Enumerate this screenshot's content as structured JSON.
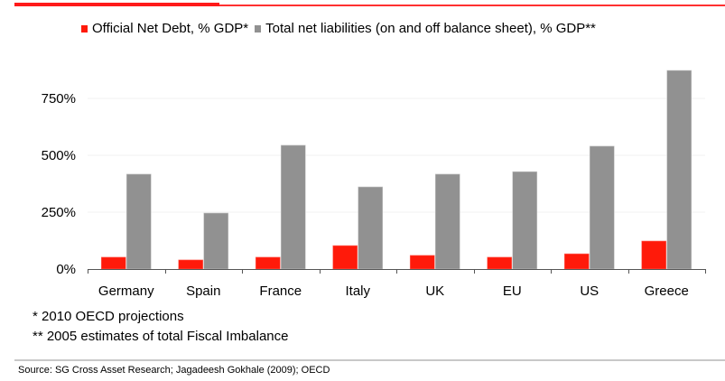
{
  "chart_data": {
    "type": "bar",
    "title": "",
    "xlabel": "",
    "ylabel": "",
    "categories": [
      "Germany",
      "Spain",
      "France",
      "Italy",
      "UK",
      "EU",
      "US",
      "Greece"
    ],
    "series": [
      {
        "name": "Official Net Debt, % GDP*",
        "color": "#ff1a0a",
        "values": [
          52,
          40,
          52,
          103,
          60,
          52,
          67,
          123
        ]
      },
      {
        "name": "Total net liabilities (on and off balance sheet), % GDP**",
        "color": "#919191",
        "values": [
          417,
          246,
          544,
          361,
          417,
          428,
          540,
          873
        ]
      }
    ],
    "yticks": [
      0,
      250,
      500,
      750
    ],
    "ytick_labels": [
      "0%",
      "250%",
      "500%",
      "750%"
    ],
    "ylim": [
      0,
      900
    ],
    "grid": true,
    "legend_position": "top"
  },
  "notes": [
    "* 2010 OECD projections",
    "** 2005 estimates of total Fiscal Imbalance"
  ],
  "source": "Source: SG Cross Asset Research; Jagadeesh Gokhale (2009); OECD",
  "colors": {
    "brand_red": "#ff1a1a",
    "rule_gray": "#c8c8c8"
  }
}
